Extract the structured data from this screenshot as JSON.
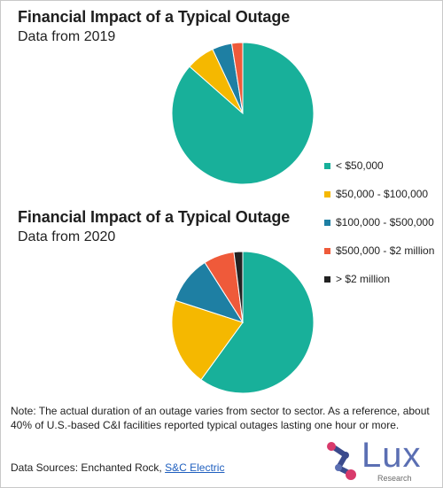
{
  "colors": {
    "teal": "#18b09a",
    "yellow": "#f5b800",
    "blue": "#1e7fa3",
    "orange": "#ef5a3a",
    "black": "#222222"
  },
  "legend": [
    {
      "label": "< $50,000",
      "color": "#18b09a"
    },
    {
      "label": "$50,000 - $100,000",
      "color": "#f5b800"
    },
    {
      "label": "$100,000 - $500,000",
      "color": "#1e7fa3"
    },
    {
      "label": "$500,000 - $2 million",
      "color": "#ef5a3a"
    },
    {
      "label": "> $2 million",
      "color": "#222222"
    }
  ],
  "chart_data": [
    {
      "type": "pie",
      "title": "Financial Impact of a Typical Outage",
      "subtitle": "Data from 2019",
      "categories": [
        "< $50,000",
        "$50,000 - $100,000",
        "$100,000 - $500,000",
        "$500,000 - $2 million",
        "> $2 million"
      ],
      "values": [
        86.5,
        6.5,
        4.5,
        2.5,
        0
      ],
      "legend": "right"
    },
    {
      "type": "pie",
      "title": "Financial Impact of a Typical Outage",
      "subtitle": "Data from 2020",
      "categories": [
        "< $50,000",
        "$50,000 - $100,000",
        "$100,000 - $500,000",
        "$500,000 - $2 million",
        "> $2 million"
      ],
      "values": [
        60,
        20,
        11,
        7,
        2
      ],
      "legend": "right"
    }
  ],
  "note": "Note: The actual duration of an outage varies from sector to sector. As a reference, about 40% of U.S.-based C&I facilities reported typical outages lasting one hour or more.",
  "sources": {
    "prefix": "Data Sources: Enchanted Rock, ",
    "link": "S&C Electric"
  },
  "logo": {
    "word": "Lux",
    "sub": "Research"
  }
}
